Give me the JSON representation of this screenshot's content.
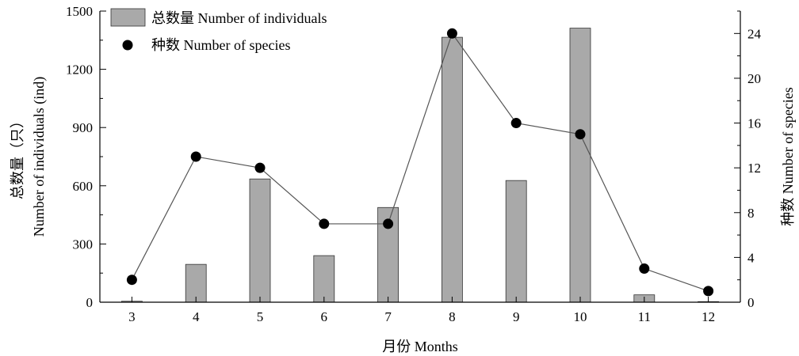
{
  "chart_data": {
    "type": "bar+line",
    "categories": [
      "3",
      "4",
      "5",
      "6",
      "7",
      "8",
      "9",
      "10",
      "11",
      "12"
    ],
    "xlabel": "月份  Months",
    "ylabel_left_cn": "总数量（只）",
    "ylabel_left_en": "Number of individuals (ind)",
    "ylabel_right": "种数  Number of species",
    "ylim_left": [
      0,
      1500
    ],
    "yticks_left": [
      "0",
      "300",
      "600",
      "900",
      "1200",
      "1500"
    ],
    "ylim_right": [
      0,
      26
    ],
    "yticks_right": [
      "0",
      "4",
      "8",
      "12",
      "16",
      "20",
      "24"
    ],
    "grid": false,
    "legend_position": "top-left",
    "series": [
      {
        "name": "总数量  Number of individuals",
        "kind": "bar",
        "axis": "left",
        "color": "#a9a9a9",
        "values": [
          5,
          195,
          635,
          240,
          488,
          1365,
          627,
          1412,
          38,
          3
        ]
      },
      {
        "name": "种数  Number of species",
        "kind": "line-marker",
        "axis": "right",
        "color": "#000000",
        "values": [
          2,
          13,
          12,
          7,
          7,
          24,
          16,
          15,
          3,
          1
        ]
      }
    ]
  }
}
